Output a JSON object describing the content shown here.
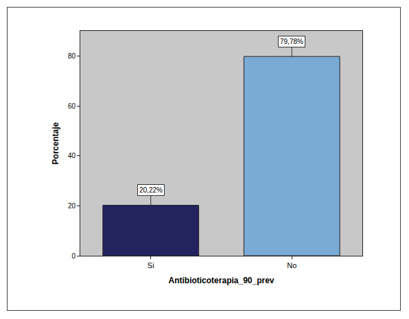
{
  "chart_data": {
    "type": "bar",
    "categories": [
      "Si",
      "No"
    ],
    "values": [
      20.22,
      79.78
    ],
    "value_labels": [
      "20,22%",
      "79,78%"
    ],
    "data_labels": true,
    "colors": [
      "#23235f",
      "#7aaad6"
    ],
    "x_label": "Antibioticoterapia_90_prev",
    "y_label": "Porcentaje",
    "ylim": [
      0,
      90
    ],
    "yticks": [
      0,
      20,
      40,
      60,
      80
    ],
    "grid": false
  }
}
